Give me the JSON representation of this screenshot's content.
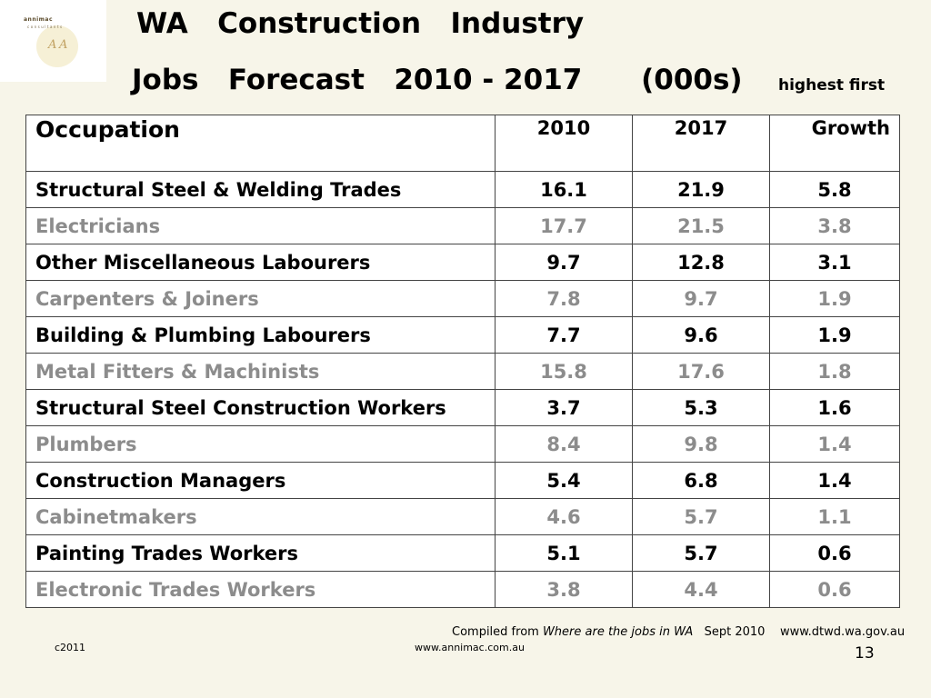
{
  "logo": {
    "line1": "annimac",
    "line2": "consultants",
    "script": "A A"
  },
  "header": {
    "title_line1": "WA   Construction   Industry",
    "title_line2": "Jobs   Forecast   2010 - 2017      (000s)",
    "note": "highest first"
  },
  "table": {
    "columns": [
      "Occupation",
      "2010",
      "2017",
      "Growth"
    ],
    "rows": [
      {
        "occupation": "Structural Steel & Welding Trades",
        "y2010": "16.1",
        "y2017": "21.9",
        "growth": "5.8"
      },
      {
        "occupation": "Electricians",
        "y2010": "17.7",
        "y2017": "21.5",
        "growth": "3.8"
      },
      {
        "occupation": "Other Miscellaneous Labourers",
        "y2010": "9.7",
        "y2017": "12.8",
        "growth": "3.1"
      },
      {
        "occupation": "Carpenters & Joiners",
        "y2010": "7.8",
        "y2017": "9.7",
        "growth": "1.9"
      },
      {
        "occupation": "Building & Plumbing Labourers",
        "y2010": "7.7",
        "y2017": "9.6",
        "growth": "1.9"
      },
      {
        "occupation": "Metal Fitters & Machinists",
        "y2010": "15.8",
        "y2017": "17.6",
        "growth": "1.8"
      },
      {
        "occupation": "Structural Steel Construction Workers",
        "y2010": "3.7",
        "y2017": "5.3",
        "growth": "1.6"
      },
      {
        "occupation": "Plumbers",
        "y2010": "8.4",
        "y2017": "9.8",
        "growth": "1.4"
      },
      {
        "occupation": "Construction Managers",
        "y2010": "5.4",
        "y2017": "6.8",
        "growth": "1.4"
      },
      {
        "occupation": "Cabinetmakers",
        "y2010": "4.6",
        "y2017": "5.7",
        "growth": "1.1"
      },
      {
        "occupation": "Painting Trades Workers",
        "y2010": "5.1",
        "y2017": "5.7",
        "growth": "0.6"
      },
      {
        "occupation": "Electronic Trades Workers",
        "y2010": "3.8",
        "y2017": "4.4",
        "growth": "0.6"
      }
    ]
  },
  "footer": {
    "source_prefix": "Compiled from ",
    "source_title": "Where are the jobs in WA",
    "source_suffix": "   Sept 2010    www.dtwd.wa.gov.au",
    "copyright": "c2011",
    "url": "www.annimac.com.au",
    "page_number": "13"
  },
  "colors": {
    "background": "#f7f5e9",
    "row_dark": "#000000",
    "row_grey": "#8c8c8c"
  }
}
